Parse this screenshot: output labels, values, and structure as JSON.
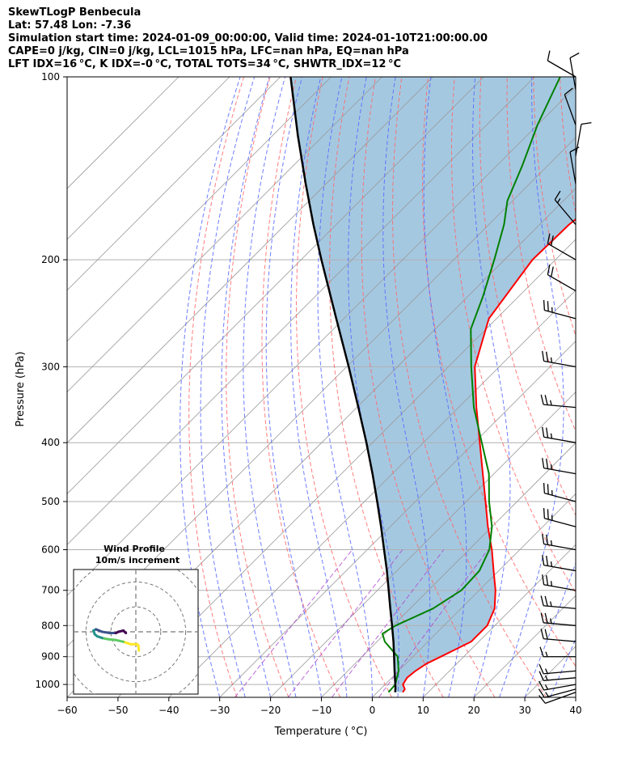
{
  "header": {
    "line1": "SkewTLogP Benbecula",
    "line2": "Lat: 57.48   Lon: -7.36",
    "line3": "Simulation start time: 2024-01-09_00:00:00, Valid time: 2024-01-10T21:00:00.00",
    "line4": "CAPE=0 j/kg, CIN=0 j/kg, LCL=1015 hPa, LFC=nan hPa, EQ=nan hPa",
    "line5": "LFT IDX=16 °C, K IDX=-0 °C, TOTAL TOTS=34 °C, SHWTR_IDX=12 °C"
  },
  "chart_data": {
    "type": "line",
    "subtype": "skew-t log-p",
    "xlabel": "Temperature ( °C)",
    "ylabel": "Pressure (hPa)",
    "xlim": [
      -60,
      40
    ],
    "ylim": [
      1050,
      100
    ],
    "y_scale": "log",
    "x_ticks": [
      -60,
      -50,
      -40,
      -30,
      -20,
      -10,
      0,
      10,
      20,
      30,
      40
    ],
    "y_ticks": [
      1000,
      900,
      800,
      700,
      600,
      500,
      400,
      300,
      200,
      100
    ],
    "grid": true,
    "colors": {
      "temperature": "#ff0000",
      "dewpoint": "#008000",
      "parcel": "#000000",
      "cin_cape_fill": "#5b9bc8",
      "dry_adiabats": "#ff6666",
      "moist_adiabats": "#5566ff",
      "mixing_ratio": "#aa44cc",
      "isotherms": "#999999"
    },
    "series": [
      {
        "name": "Temperature",
        "p": [
          1030,
          1018,
          1000,
          975,
          950,
          925,
          900,
          875,
          850,
          800,
          750,
          700,
          650,
          600,
          550,
          500,
          450,
          400,
          350,
          300,
          250,
          200,
          175,
          160,
          150,
          140,
          130,
          120,
          110,
          100
        ],
        "t": [
          5.0,
          4.8,
          3.5,
          3.0,
          3.3,
          4.0,
          5.5,
          7.0,
          8.5,
          8.5,
          6.6,
          3.2,
          -1.0,
          -5.5,
          -10.8,
          -16.2,
          -22.2,
          -28.9,
          -36.5,
          -44.8,
          -51.5,
          -54.5,
          -54.2,
          -53.0,
          -52.5,
          -53.0,
          -54.5,
          -55.5,
          -56.0,
          -57.0
        ]
      },
      {
        "name": "Dewpoint",
        "p": [
          1030,
          1000,
          950,
          900,
          850,
          825,
          800,
          750,
          700,
          650,
          600,
          550,
          500,
          450,
          400,
          350,
          300,
          260,
          230,
          200,
          175,
          160,
          140,
          120,
          100
        ],
        "t": [
          2.2,
          2.0,
          0.0,
          -3.0,
          -8.5,
          -10.5,
          -9.5,
          -5.5,
          -3.5,
          -3.8,
          -6.0,
          -10.0,
          -15.5,
          -21.0,
          -28.5,
          -37.0,
          -45.5,
          -53.0,
          -57.0,
          -62.0,
          -67.0,
          -71.0,
          -75.0,
          -80.0,
          -85.0
        ]
      },
      {
        "name": "Parcel",
        "p": [
          1030,
          1015,
          1000,
          950,
          900,
          850,
          800,
          750,
          700,
          650,
          600,
          550,
          500,
          450,
          400,
          350,
          300,
          250,
          200,
          175,
          150,
          125,
          100
        ],
        "t": [
          3.5,
          2.8,
          2.0,
          -0.8,
          -3.7,
          -6.8,
          -10.2,
          -13.9,
          -17.8,
          -22.0,
          -26.7,
          -31.8,
          -37.5,
          -43.9,
          -51.2,
          -59.7,
          -69.6,
          -81.5,
          -96.0,
          -104.5,
          -114.0,
          -125.0,
          -138.0
        ]
      }
    ],
    "wind_barbs": [
      {
        "p": 1030,
        "speed_kt": 10,
        "dir_deg": 250
      },
      {
        "p": 1018,
        "speed_kt": 15,
        "dir_deg": 255
      },
      {
        "p": 1000,
        "speed_kt": 15,
        "dir_deg": 260
      },
      {
        "p": 975,
        "speed_kt": 15,
        "dir_deg": 265
      },
      {
        "p": 950,
        "speed_kt": 15,
        "dir_deg": 265
      },
      {
        "p": 900,
        "speed_kt": 15,
        "dir_deg": 270
      },
      {
        "p": 850,
        "speed_kt": 20,
        "dir_deg": 275
      },
      {
        "p": 800,
        "speed_kt": 25,
        "dir_deg": 275
      },
      {
        "p": 750,
        "speed_kt": 25,
        "dir_deg": 275
      },
      {
        "p": 700,
        "speed_kt": 25,
        "dir_deg": 280
      },
      {
        "p": 650,
        "speed_kt": 25,
        "dir_deg": 280
      },
      {
        "p": 600,
        "speed_kt": 25,
        "dir_deg": 280
      },
      {
        "p": 550,
        "speed_kt": 25,
        "dir_deg": 285
      },
      {
        "p": 500,
        "speed_kt": 25,
        "dir_deg": 285
      },
      {
        "p": 450,
        "speed_kt": 25,
        "dir_deg": 280
      },
      {
        "p": 400,
        "speed_kt": 25,
        "dir_deg": 280
      },
      {
        "p": 350,
        "speed_kt": 25,
        "dir_deg": 275
      },
      {
        "p": 300,
        "speed_kt": 25,
        "dir_deg": 280
      },
      {
        "p": 250,
        "speed_kt": 25,
        "dir_deg": 285
      },
      {
        "p": 225,
        "speed_kt": 20,
        "dir_deg": 300
      },
      {
        "p": 200,
        "speed_kt": 20,
        "dir_deg": 300
      },
      {
        "p": 175,
        "speed_kt": 15,
        "dir_deg": 320
      },
      {
        "p": 150,
        "speed_kt": 10,
        "dir_deg": 350
      },
      {
        "p": 135,
        "speed_kt": 10,
        "dir_deg": 10
      },
      {
        "p": 120,
        "speed_kt": 10,
        "dir_deg": 340
      },
      {
        "p": 105,
        "speed_kt": 10,
        "dir_deg": 350
      },
      {
        "p": 100,
        "speed_kt": 10,
        "dir_deg": 300
      }
    ],
    "hodograph": {
      "title": "Wind Profile",
      "subtitle": "10m/s increment",
      "range_ms": 25,
      "rings_ms": [
        10,
        20
      ],
      "points_uv": [
        [
          1.2,
          -7.5
        ],
        [
          1.0,
          -5.5
        ],
        [
          0.5,
          -5.0
        ],
        [
          -2.0,
          -5.0
        ],
        [
          -5.0,
          -4.0
        ],
        [
          -8.0,
          -3.3
        ],
        [
          -11.0,
          -3.0
        ],
        [
          -13.5,
          -2.5
        ],
        [
          -15.5,
          -1.8
        ],
        [
          -16.5,
          -1.0
        ],
        [
          -17.0,
          0.5
        ],
        [
          -16.0,
          1.0
        ],
        [
          -13.5,
          0.0
        ],
        [
          -10.5,
          -0.5
        ],
        [
          -8.0,
          -0.5
        ],
        [
          -7.0,
          0.0
        ],
        [
          -5.0,
          0.5
        ],
        [
          -4.0,
          -0.5
        ]
      ],
      "colormap": [
        "#fde725",
        "#5ec962",
        "#21918c",
        "#3b528b",
        "#440154"
      ]
    }
  }
}
